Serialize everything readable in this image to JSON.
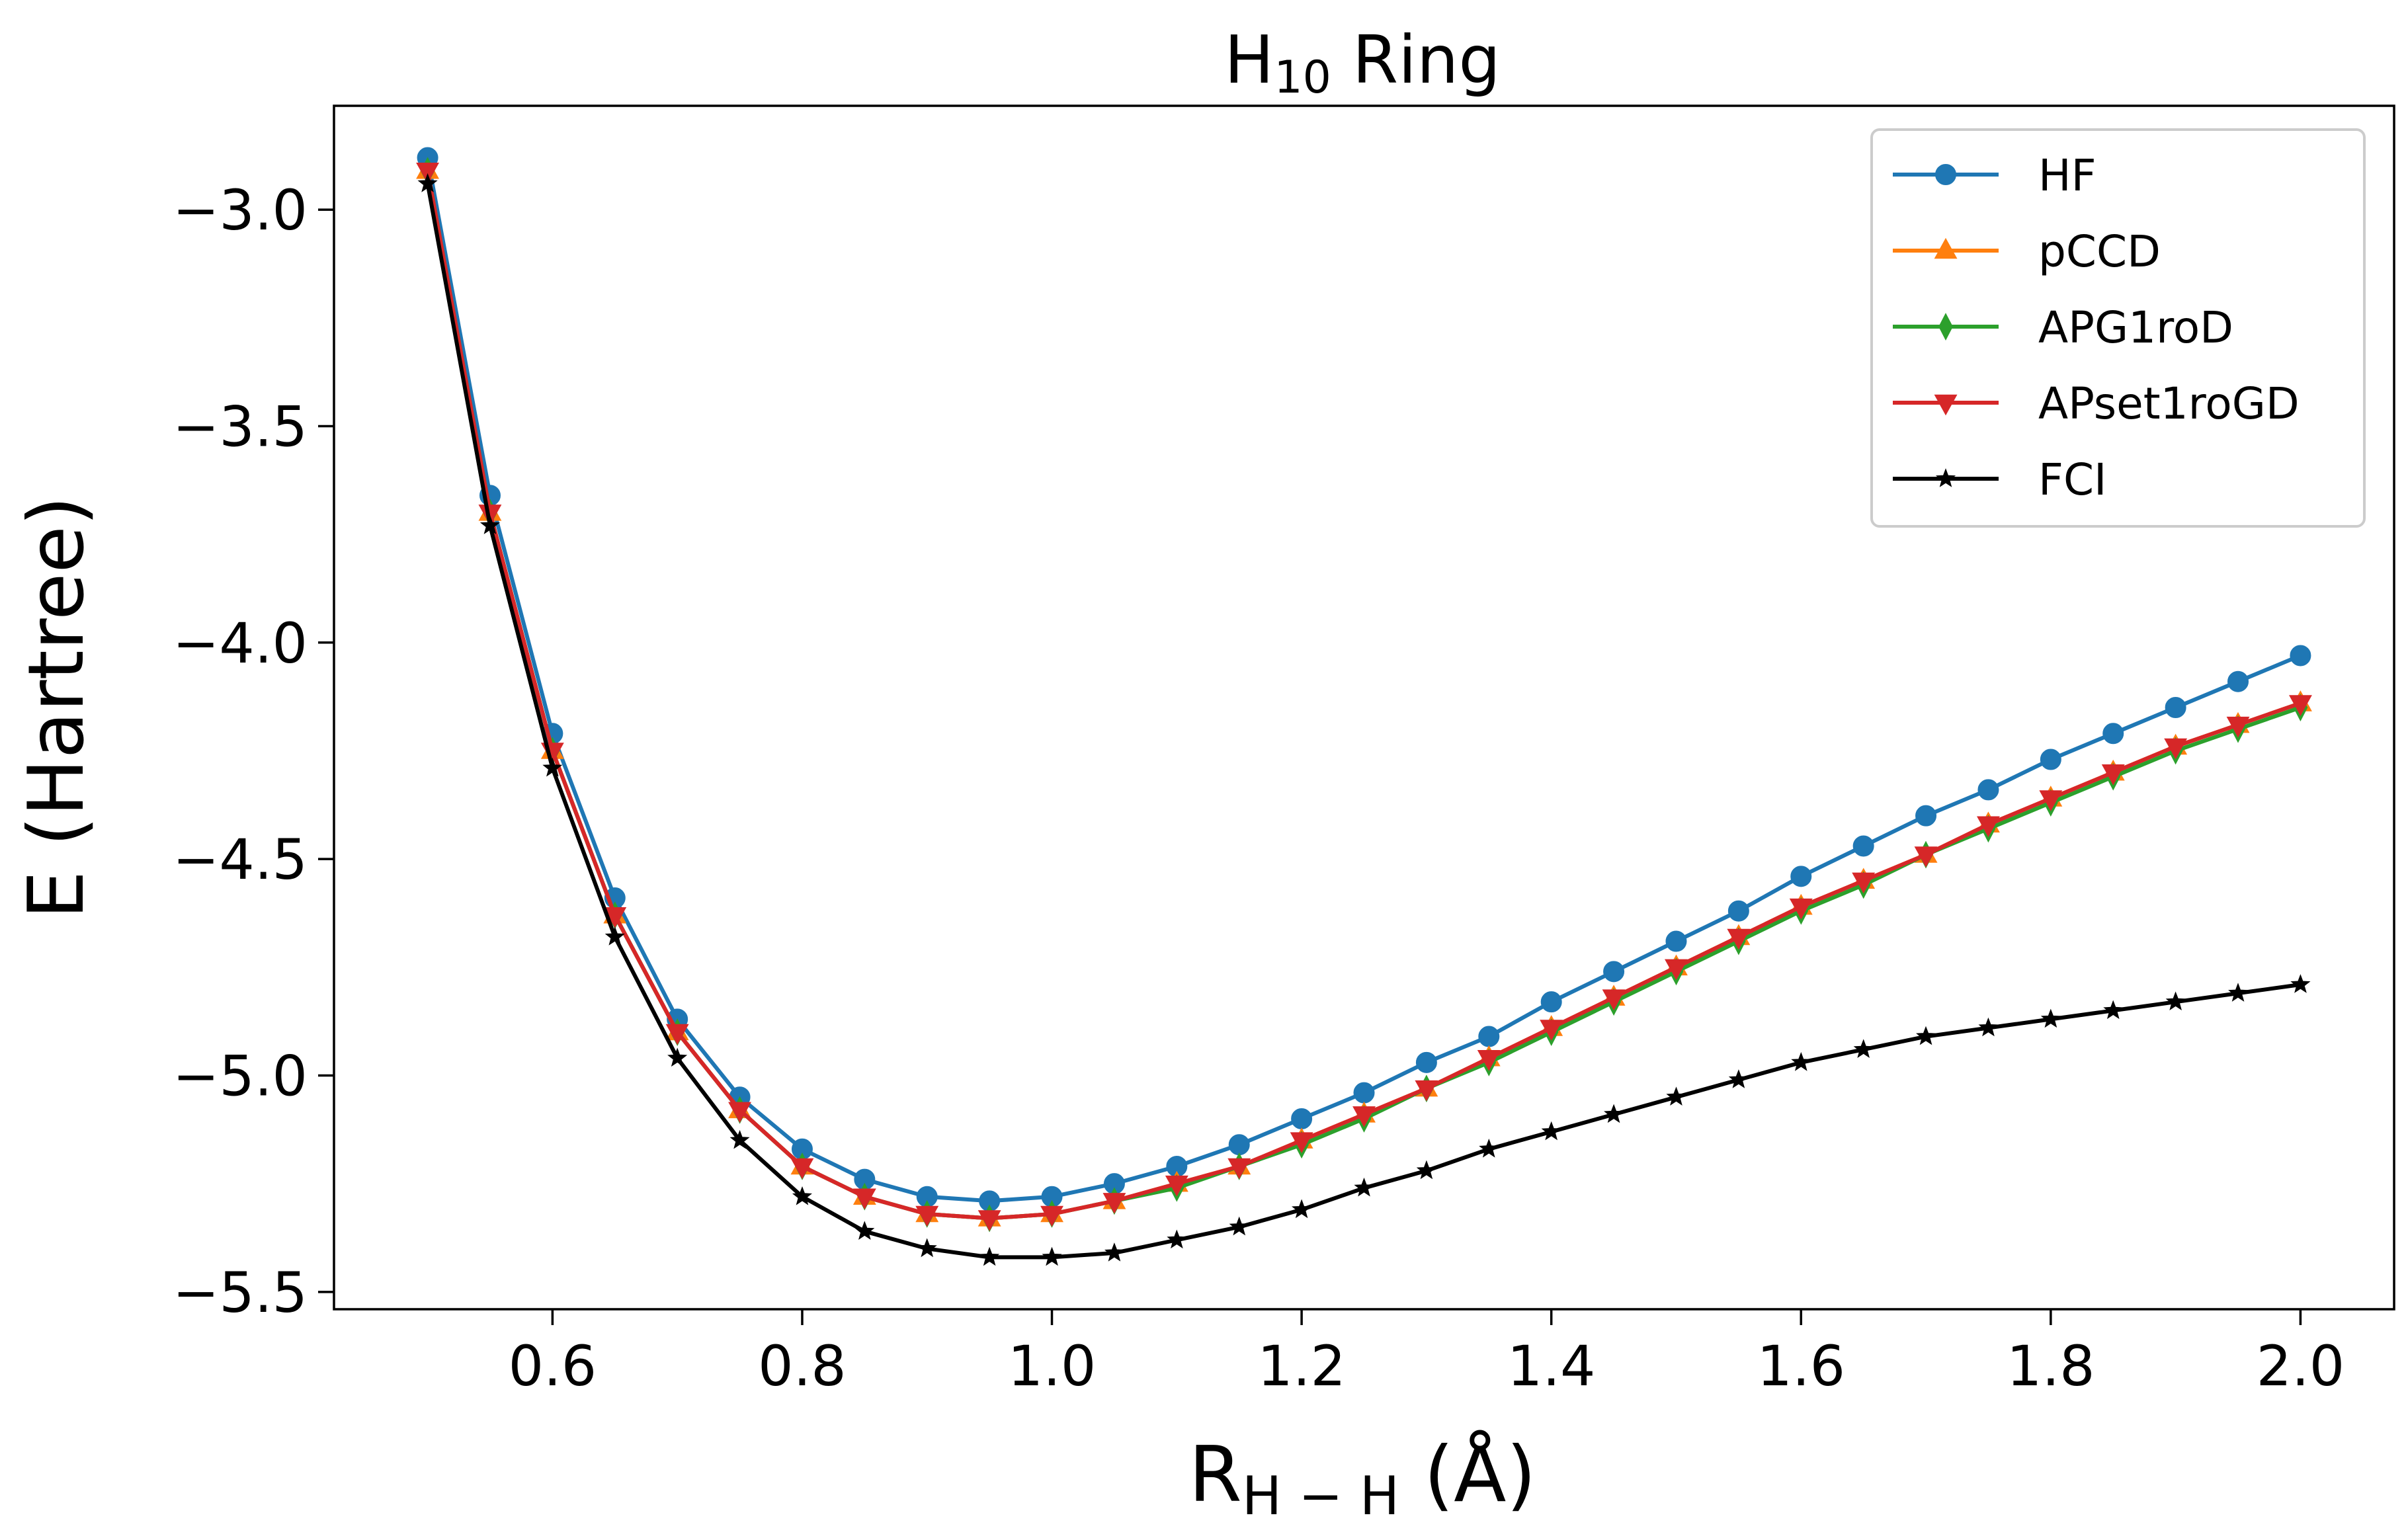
{
  "chart_data": {
    "type": "line",
    "title": {
      "main": "H",
      "sub": "10",
      "rest": " Ring"
    },
    "xlabel": {
      "main": "R",
      "sub": "H − H",
      "rest": " (Å)"
    },
    "ylabel": "E (Hartree)",
    "xlim": [
      0.425,
      2.075
    ],
    "ylim": [
      -5.54,
      -2.76
    ],
    "xticks": [
      0.6,
      0.8,
      1.0,
      1.2,
      1.4,
      1.6,
      1.8,
      2.0
    ],
    "xtick_labels": [
      "0.6",
      "0.8",
      "1.0",
      "1.2",
      "1.4",
      "1.6",
      "1.8",
      "2.0"
    ],
    "yticks": [
      -3.0,
      -3.5,
      -4.0,
      -4.5,
      -5.0,
      -5.5
    ],
    "ytick_labels": [
      "−3.0",
      "−3.5",
      "−4.0",
      "−4.5",
      "−5.0",
      "−5.5"
    ],
    "grid": false,
    "legend_position": "top-right",
    "x": [
      0.5,
      0.55,
      0.6,
      0.65,
      0.7,
      0.75,
      0.8,
      0.85,
      0.9,
      0.95,
      1.0,
      1.05,
      1.1,
      1.15,
      1.2,
      1.25,
      1.3,
      1.35,
      1.4,
      1.45,
      1.5,
      1.55,
      1.6,
      1.65,
      1.7,
      1.75,
      1.8,
      1.85,
      1.9,
      1.95,
      2.0
    ],
    "series": [
      {
        "name": "HF",
        "color": "#1f77b4",
        "marker": "circle",
        "values": [
          -2.88,
          -3.66,
          -4.21,
          -4.59,
          -4.87,
          -5.05,
          -5.17,
          -5.24,
          -5.28,
          -5.29,
          -5.28,
          -5.25,
          -5.21,
          -5.16,
          -5.1,
          -5.04,
          -4.97,
          -4.91,
          -4.83,
          -4.76,
          -4.69,
          -4.62,
          -4.54,
          -4.47,
          -4.4,
          -4.34,
          -4.27,
          -4.21,
          -4.15,
          -4.09,
          -4.03
        ]
      },
      {
        "name": "pCCD",
        "color": "#ff7f0e",
        "marker": "triangle-up",
        "values": [
          -2.91,
          -3.7,
          -4.25,
          -4.63,
          -4.9,
          -5.08,
          -5.21,
          -5.28,
          -5.32,
          -5.33,
          -5.32,
          -5.29,
          -5.25,
          -5.21,
          -5.15,
          -5.09,
          -5.03,
          -4.96,
          -4.89,
          -4.82,
          -4.75,
          -4.68,
          -4.61,
          -4.55,
          -4.49,
          -4.42,
          -4.36,
          -4.3,
          -4.24,
          -4.19,
          -4.14
        ]
      },
      {
        "name": "APG1roD",
        "color": "#2ca02c",
        "marker": "thin-diamond",
        "values": [
          -2.91,
          -3.7,
          -4.25,
          -4.63,
          -4.9,
          -5.08,
          -5.21,
          -5.28,
          -5.32,
          -5.33,
          -5.32,
          -5.29,
          -5.26,
          -5.21,
          -5.16,
          -5.1,
          -5.03,
          -4.97,
          -4.9,
          -4.83,
          -4.76,
          -4.69,
          -4.62,
          -4.56,
          -4.49,
          -4.43,
          -4.37,
          -4.31,
          -4.25,
          -4.2,
          -4.15
        ]
      },
      {
        "name": "APset1roGD",
        "color": "#d62728",
        "marker": "triangle-down",
        "values": [
          -2.91,
          -3.7,
          -4.25,
          -4.63,
          -4.9,
          -5.08,
          -5.21,
          -5.28,
          -5.32,
          -5.33,
          -5.32,
          -5.29,
          -5.25,
          -5.21,
          -5.15,
          -5.09,
          -5.03,
          -4.96,
          -4.89,
          -4.82,
          -4.75,
          -4.68,
          -4.61,
          -4.55,
          -4.49,
          -4.42,
          -4.36,
          -4.3,
          -4.24,
          -4.19,
          -4.14
        ]
      },
      {
        "name": "FCI",
        "color": "#000000",
        "marker": "star",
        "values": [
          -2.94,
          -3.73,
          -4.29,
          -4.68,
          -4.96,
          -5.15,
          -5.28,
          -5.36,
          -5.4,
          -5.42,
          -5.42,
          -5.41,
          -5.38,
          -5.35,
          -5.31,
          -5.26,
          -5.22,
          -5.17,
          -5.13,
          -5.09,
          -5.05,
          -5.01,
          -4.97,
          -4.94,
          -4.91,
          -4.89,
          -4.87,
          -4.85,
          -4.83,
          -4.81,
          -4.79
        ]
      }
    ]
  }
}
